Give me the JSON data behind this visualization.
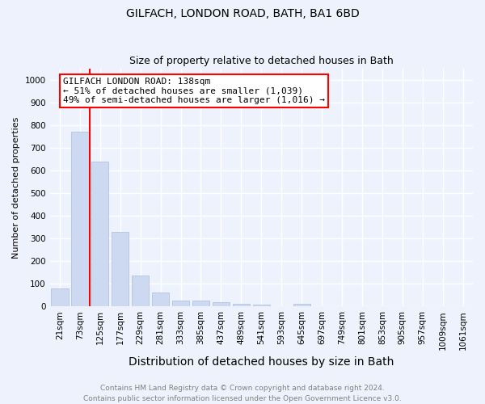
{
  "title": "GILFACH, LONDON ROAD, BATH, BA1 6BD",
  "subtitle": "Size of property relative to detached houses in Bath",
  "xlabel": "Distribution of detached houses by size in Bath",
  "ylabel": "Number of detached properties",
  "bar_color": "#ccd9f0",
  "bar_edgecolor": "#a8bede",
  "categories": [
    "21sqm",
    "73sqm",
    "125sqm",
    "177sqm",
    "229sqm",
    "281sqm",
    "333sqm",
    "385sqm",
    "437sqm",
    "489sqm",
    "541sqm",
    "593sqm",
    "645sqm",
    "697sqm",
    "749sqm",
    "801sqm",
    "853sqm",
    "905sqm",
    "957sqm",
    "1009sqm",
    "1061sqm"
  ],
  "values": [
    80,
    770,
    640,
    330,
    135,
    60,
    25,
    25,
    20,
    10,
    8,
    2,
    10,
    0,
    0,
    0,
    0,
    0,
    0,
    0,
    0
  ],
  "ylim": [
    0,
    1050
  ],
  "yticks": [
    0,
    100,
    200,
    300,
    400,
    500,
    600,
    700,
    800,
    900,
    1000
  ],
  "red_line_x": 1.5,
  "annotation_line1": "GILFACH LONDON ROAD: 138sqm",
  "annotation_line2": "← 51% of detached houses are smaller (1,039)",
  "annotation_line3": "49% of semi-detached houses are larger (1,016) →",
  "footer_line1": "Contains HM Land Registry data © Crown copyright and database right 2024.",
  "footer_line2": "Contains public sector information licensed under the Open Government Licence v3.0.",
  "background_color": "#eef2fc",
  "grid_color": "#ffffff",
  "title_fontsize": 10,
  "subtitle_fontsize": 9,
  "xlabel_fontsize": 10,
  "ylabel_fontsize": 8,
  "tick_fontsize": 7.5,
  "annotation_fontsize": 8,
  "footer_fontsize": 6.5
}
